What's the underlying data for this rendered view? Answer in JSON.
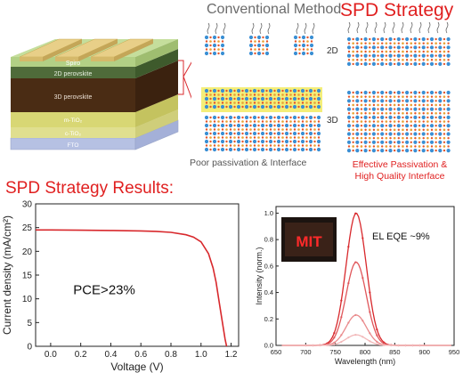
{
  "header": {
    "conventional": "Conventional Method",
    "spd": "SPD Strategy"
  },
  "device_stack": {
    "layers": [
      "Spiro",
      "2D perovskite",
      "3D perovskite",
      "m-TiO₂",
      "c-TiO₂",
      "FTO"
    ]
  },
  "structure_labels": {
    "dim_2d": "2D",
    "dim_3d": "3D",
    "caption_conventional": "Poor passivation & Interface",
    "caption_spd_line1": "Effective Passivation &",
    "caption_spd_line2": "High Quality Interface"
  },
  "results_title": "SPD Strategy Results:",
  "chart_data": [
    {
      "type": "line",
      "xlabel": "Voltage (V)",
      "ylabel": "Current density (mA/cm²)",
      "xlim": [
        -0.1,
        1.25
      ],
      "ylim": [
        0,
        30
      ],
      "xticks": [
        "0.0",
        "0.2",
        "0.4",
        "0.6",
        "0.8",
        "1.0",
        "1.2"
      ],
      "yticks": [
        "0",
        "5",
        "10",
        "15",
        "20",
        "25",
        "30"
      ],
      "annotation": "PCE>23%",
      "series": [
        {
          "x": [
            -0.1,
            0.0,
            0.2,
            0.4,
            0.6,
            0.7,
            0.8,
            0.9,
            0.95,
            1.0,
            1.05,
            1.08,
            1.1,
            1.12,
            1.14,
            1.16,
            1.17
          ],
          "y": [
            24.5,
            24.5,
            24.45,
            24.4,
            24.3,
            24.2,
            24.0,
            23.5,
            23.0,
            22.0,
            19.5,
            16.5,
            13.5,
            9.5,
            5.5,
            1.5,
            0
          ]
        }
      ],
      "color": "#d8282c"
    },
    {
      "type": "line",
      "xlabel": "Wavelength (nm)",
      "ylabel": "Intensity (norm.)",
      "xlim": [
        650,
        950
      ],
      "ylim": [
        0,
        1.05
      ],
      "xticks": [
        "650",
        "700",
        "750",
        "800",
        "850",
        "900",
        "950"
      ],
      "yticks": [
        "0.0",
        "0.2",
        "0.4",
        "0.6",
        "0.8",
        "1.0"
      ],
      "annotation": "EL EQE ~9%",
      "inset_text": "MIT",
      "series": [
        {
          "peak": 1.0,
          "center": 785,
          "width": 17
        },
        {
          "peak": 0.63,
          "center": 785,
          "width": 17
        },
        {
          "peak": 0.23,
          "center": 785,
          "width": 17
        },
        {
          "peak": 0.08,
          "center": 785,
          "width": 17
        }
      ],
      "colors": [
        "#d8282c",
        "#e0565a",
        "#e98a8c",
        "#f2b8b9"
      ]
    }
  ]
}
